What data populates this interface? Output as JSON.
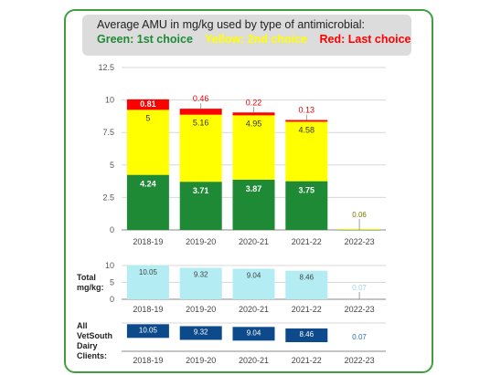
{
  "title": {
    "line1": "Average AMU in mg/kg used by type of antimicrobial:",
    "legend": [
      {
        "label": "Green: 1st choice",
        "color": "#1e8a36"
      },
      {
        "label": "Yellow: 2nd choice",
        "color": "#ffff00"
      },
      {
        "label": "Red: Last choice",
        "color": "#ff0000"
      }
    ]
  },
  "labels": {
    "total": "Total mg/kg:",
    "clients": "All VetSouth Dairy Clients:"
  },
  "colors": {
    "green": "#1e8a36",
    "yellow": "#ffff00",
    "red": "#ff0000",
    "light_blue": "#b3ecf3",
    "dark_blue": "#0d4a8c",
    "frame": "#3f9f3f"
  },
  "chart_data": [
    {
      "type": "bar",
      "stacked": true,
      "categories": [
        "2018-19",
        "2019-20",
        "2020-21",
        "2021-22",
        "2022-23"
      ],
      "series": [
        {
          "name": "Green: 1st choice",
          "color": "#1e8a36",
          "values": [
            4.24,
            3.71,
            3.87,
            3.75,
            0.01
          ]
        },
        {
          "name": "Yellow: 2nd choice",
          "color": "#ffff00",
          "values": [
            5,
            5.16,
            4.95,
            4.58,
            0.06
          ]
        },
        {
          "name": "Red: Last choice",
          "color": "#ff0000",
          "values": [
            0.81,
            0.46,
            0.22,
            0.13,
            0
          ]
        }
      ],
      "data_labels": {
        "green": [
          "4.24",
          "3.71",
          "3.87",
          "3.75",
          ""
        ],
        "yellow": [
          "5",
          "5.16",
          "4.95",
          "4.58",
          "0.06"
        ],
        "red": [
          "0.81",
          "0.46",
          "0.22",
          "0.13",
          ""
        ]
      },
      "yticks": [
        "0",
        "2.5",
        "5",
        "7.5",
        "10",
        "12.5"
      ],
      "ylim": [
        0,
        12.5
      ],
      "grid": true
    },
    {
      "type": "bar",
      "categories": [
        "2018-19",
        "2019-20",
        "2020-21",
        "2021-22",
        "2022-23"
      ],
      "values": [
        10.05,
        9.32,
        9.04,
        8.46,
        0.07
      ],
      "value_labels": [
        "10.05",
        "9.32",
        "9.04",
        "8.46",
        "0.07"
      ],
      "yticks": [
        "0",
        "5",
        "10"
      ],
      "ylim": [
        0,
        10
      ],
      "grid": true
    },
    {
      "type": "bar",
      "categories": [
        "2018-19",
        "2019-20",
        "2020-21",
        "2021-22",
        "2022-23"
      ],
      "values": [
        10.05,
        9.32,
        9.04,
        8.46,
        0.07
      ],
      "value_labels": [
        "10.05",
        "9.32",
        "9.04",
        "8.46",
        "0.07"
      ],
      "grid": true
    }
  ]
}
